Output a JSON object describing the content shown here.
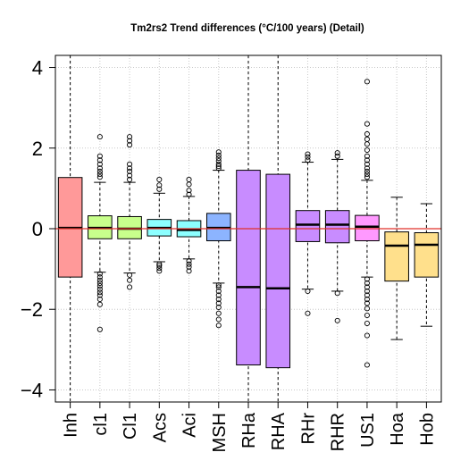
{
  "chart_data": {
    "type": "boxplot",
    "title": "Tm2rs2 Trend differences (°C/100 years) (Detail)",
    "xlabel": "",
    "ylabel": "",
    "ylim": [
      -4.3,
      4.3
    ],
    "yticks": [
      -4,
      -2,
      0,
      2,
      4
    ],
    "ytick_labels": [
      "−4",
      "−2",
      "0",
      "2",
      "4"
    ],
    "grid": true,
    "reference_line": {
      "y": 0,
      "color": "#e0302b"
    },
    "categories": [
      "Inh",
      "cl1",
      "Cl1",
      "Acs",
      "Aci",
      "MSH",
      "RHa",
      "RHA",
      "RHr",
      "RHR",
      "US1",
      "Hoa",
      "Hob"
    ],
    "boxes": [
      {
        "name": "Inh",
        "color": "#ff9999",
        "q1": -1.2,
        "median": 0.02,
        "q3": 1.27,
        "whisker_low": -1.2,
        "whisker_high": 1.27,
        "dashed_full_height": true,
        "outliers": []
      },
      {
        "name": "cl1",
        "color": "#c8ff8c",
        "q1": -0.25,
        "median": 0.02,
        "q3": 0.32,
        "whisker_low": -1.08,
        "whisker_high": 1.15,
        "outliers": [
          2.28,
          1.8,
          1.7,
          1.6,
          1.5,
          1.42,
          1.35,
          1.28,
          -1.12,
          -1.2,
          -1.28,
          -1.35,
          -1.42,
          -1.5,
          -1.58,
          -1.65,
          -1.75,
          -1.88,
          -2.5
        ]
      },
      {
        "name": "Cl1",
        "color": "#c8ff8c",
        "q1": -0.25,
        "median": 0.0,
        "q3": 0.3,
        "whisker_low": -1.1,
        "whisker_high": 1.15,
        "outliers": [
          2.28,
          2.18,
          2.08,
          1.6,
          1.5,
          1.42,
          1.32,
          1.22,
          -1.15,
          -1.28,
          -1.45
        ]
      },
      {
        "name": "Acs",
        "color": "#8cffff",
        "q1": -0.18,
        "median": 0.02,
        "q3": 0.23,
        "whisker_low": -0.82,
        "whisker_high": 0.88,
        "outliers": [
          1.22,
          1.08,
          0.98,
          -0.88,
          -0.92,
          -0.98,
          -1.05
        ]
      },
      {
        "name": "Aci",
        "color": "#8cffff",
        "q1": -0.2,
        "median": -0.03,
        "q3": 0.2,
        "whisker_low": -0.75,
        "whisker_high": 0.8,
        "outliers": [
          1.22,
          1.1,
          0.95,
          0.85,
          -0.8,
          -0.88,
          -0.95,
          -1.05
        ]
      },
      {
        "name": "MSH",
        "color": "#8cb4ff",
        "q1": -0.3,
        "median": 0.02,
        "q3": 0.38,
        "whisker_low": -1.35,
        "whisker_high": 1.45,
        "outliers": [
          1.9,
          1.82,
          1.75,
          1.68,
          1.6,
          1.55,
          1.5,
          -1.4,
          -1.45,
          -1.55,
          -1.65,
          -1.75,
          -1.85,
          -1.95,
          -2.1,
          -2.25,
          -2.4
        ]
      },
      {
        "name": "RHa",
        "color": "#c88cff",
        "q1": -3.38,
        "median": -1.45,
        "q3": 1.45,
        "whisker_low": -3.38,
        "whisker_high": 1.45,
        "dashed_full_height": true,
        "outliers": []
      },
      {
        "name": "RHA",
        "color": "#c88cff",
        "q1": -3.45,
        "median": -1.48,
        "q3": 1.35,
        "whisker_low": -3.45,
        "whisker_high": 1.35,
        "dashed_full_height": true,
        "outliers": []
      },
      {
        "name": "RHr",
        "color": "#c88cff",
        "q1": -0.32,
        "median": 0.1,
        "q3": 0.45,
        "whisker_low": -1.5,
        "whisker_high": 1.65,
        "outliers": [
          1.85,
          1.78,
          1.7,
          -1.55,
          -2.1
        ]
      },
      {
        "name": "RHR",
        "color": "#c88cff",
        "q1": -0.35,
        "median": 0.1,
        "q3": 0.45,
        "whisker_low": -1.55,
        "whisker_high": 1.72,
        "outliers": [
          1.88,
          1.8,
          -1.6,
          -2.28
        ]
      },
      {
        "name": "US1",
        "color": "#ff99ff",
        "q1": -0.3,
        "median": 0.05,
        "q3": 0.33,
        "whisker_low": -1.2,
        "whisker_high": 1.2,
        "outliers": [
          3.65,
          2.6,
          2.35,
          2.22,
          2.1,
          1.95,
          1.8,
          1.7,
          1.6,
          1.5,
          1.42,
          1.35,
          1.28,
          -1.25,
          -1.35,
          -1.45,
          -1.55,
          -1.65,
          -1.75,
          -1.85,
          -1.98,
          -2.15,
          -2.35,
          -2.65,
          -3.38
        ]
      },
      {
        "name": "Hoa",
        "color": "#ffe08c",
        "q1": -1.3,
        "median": -0.42,
        "q3": -0.08,
        "whisker_low": -2.75,
        "whisker_high": 0.78,
        "outliers": []
      },
      {
        "name": "Hob",
        "color": "#ffe08c",
        "q1": -1.2,
        "median": -0.4,
        "q3": -0.1,
        "whisker_low": -2.42,
        "whisker_high": 0.62,
        "outliers": []
      }
    ]
  }
}
